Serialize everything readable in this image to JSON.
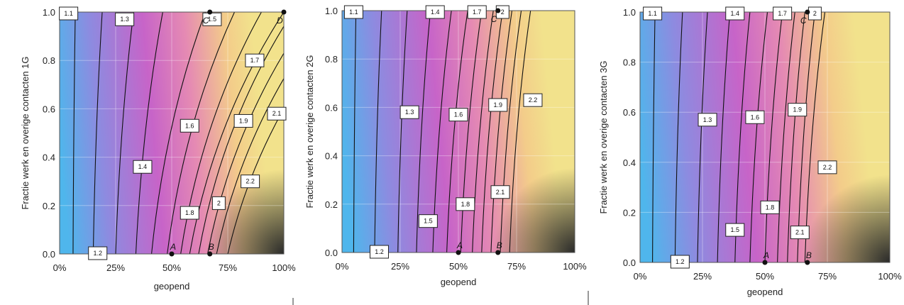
{
  "chart_data": [
    {
      "type": "heatmap",
      "title": "",
      "xlabel": "geopend",
      "ylabel": "Fractie werk en overige contacten 1G",
      "xlim": [
        0,
        100
      ],
      "ylim": [
        0,
        1
      ],
      "x_ticks": [
        "0%",
        "25%",
        "50%",
        "75%",
        "100%"
      ],
      "y_ticks": [
        "0.0",
        "0.2",
        "0.4",
        "0.6",
        "0.8",
        "1.0"
      ],
      "colormap": [
        "#4fb6ec",
        "#8d8be0",
        "#c764c8",
        "#e58ab3",
        "#f3cc8a",
        "#f2e28c",
        "#2a2a2a"
      ],
      "grid": true,
      "contour_labels": [
        {
          "text": "1.1",
          "x": 4,
          "y": 1.0
        },
        {
          "text": "1.2",
          "x": 17,
          "y": 0.0
        },
        {
          "text": "1.3",
          "x": 29,
          "y": 0.97
        },
        {
          "text": "1.4",
          "x": 37,
          "y": 0.36
        },
        {
          "text": "1.5",
          "x": 68,
          "y": 0.97
        },
        {
          "text": "1.6",
          "x": 58,
          "y": 0.53
        },
        {
          "text": "1.7",
          "x": 87,
          "y": 0.8
        },
        {
          "text": "1.8",
          "x": 58,
          "y": 0.17
        },
        {
          "text": "1.9",
          "x": 82,
          "y": 0.55
        },
        {
          "text": "2",
          "x": 71,
          "y": 0.21
        },
        {
          "text": "2.1",
          "x": 99,
          "y": 0.58
        },
        {
          "text": "2.2",
          "x": 85,
          "y": 0.3
        }
      ],
      "contour_lines": [
        {
          "level": 1.1,
          "x_at_y0": 6,
          "x_at_y1": 7
        },
        {
          "level": 1.2,
          "x_at_y0": 15,
          "x_at_y1": 19
        },
        {
          "level": 1.3,
          "x_at_y0": 25,
          "x_at_y1": 33
        },
        {
          "level": 1.4,
          "x_at_y0": 34,
          "x_at_y1": 46
        },
        {
          "level": 1.5,
          "x_at_y0": 41,
          "x_at_y1": 65
        },
        {
          "level": 1.6,
          "x_at_y0": 48,
          "x_at_y1": 78
        },
        {
          "level": 1.7,
          "x_at_y0": 54,
          "x_at_y1": 90
        },
        {
          "level": 1.8,
          "x_at_y0": 58,
          "x_at_y1": 100
        },
        {
          "level": 1.9,
          "x_at_y0": 62,
          "x_at_y1": 104
        },
        {
          "level": 2.0,
          "x_at_y0": 66,
          "x_at_y1": 112
        },
        {
          "level": 2.1,
          "x_at_y0": 70,
          "x_at_y1": 120
        },
        {
          "level": 2.2,
          "x_at_y0": 75,
          "x_at_y1": 130
        }
      ],
      "points": [
        {
          "label": "A",
          "x": 50,
          "y": 0
        },
        {
          "label": "B",
          "x": 67,
          "y": 0
        },
        {
          "label": "C",
          "x": 67,
          "y": 1
        },
        {
          "label": "D",
          "x": 100,
          "y": 1
        }
      ]
    },
    {
      "type": "heatmap",
      "title": "",
      "xlabel": "geopend",
      "ylabel": "Fractie werk en overige contacten 2G",
      "xlim": [
        0,
        100
      ],
      "ylim": [
        0,
        1
      ],
      "x_ticks": [
        "0%",
        "25%",
        "50%",
        "75%",
        "100%"
      ],
      "y_ticks": [
        "0.0",
        "0.2",
        "0.4",
        "0.6",
        "0.8",
        "1.0"
      ],
      "colormap": [
        "#4fb6ec",
        "#8d8be0",
        "#c764c8",
        "#e58ab3",
        "#f3cc8a",
        "#f2e28c",
        "#2a2a2a"
      ],
      "grid": true,
      "contour_labels": [
        {
          "text": "1.1",
          "x": 5,
          "y": 1.0
        },
        {
          "text": "1.2",
          "x": 16,
          "y": 0.0
        },
        {
          "text": "1.3",
          "x": 29,
          "y": 0.58
        },
        {
          "text": "1.4",
          "x": 40,
          "y": 1.0
        },
        {
          "text": "1.5",
          "x": 37,
          "y": 0.13
        },
        {
          "text": "1.6",
          "x": 50,
          "y": 0.57
        },
        {
          "text": "1.7",
          "x": 58,
          "y": 1.0
        },
        {
          "text": "1.8",
          "x": 53,
          "y": 0.2
        },
        {
          "text": "1.9",
          "x": 67,
          "y": 0.61
        },
        {
          "text": "2",
          "x": 69,
          "y": 1.0
        },
        {
          "text": "2.1",
          "x": 68,
          "y": 0.25
        },
        {
          "text": "2.2",
          "x": 82,
          "y": 0.63
        }
      ],
      "contour_lines": [
        {
          "level": 1.1,
          "x_at_y0": 5,
          "x_at_y1": 6
        },
        {
          "level": 1.2,
          "x_at_y0": 14,
          "x_at_y1": 17
        },
        {
          "level": 1.3,
          "x_at_y0": 24,
          "x_at_y1": 28
        },
        {
          "level": 1.4,
          "x_at_y0": 32,
          "x_at_y1": 38
        },
        {
          "level": 1.5,
          "x_at_y0": 39,
          "x_at_y1": 47
        },
        {
          "level": 1.6,
          "x_at_y0": 45,
          "x_at_y1": 54
        },
        {
          "level": 1.7,
          "x_at_y0": 51,
          "x_at_y1": 60
        },
        {
          "level": 1.8,
          "x_at_y0": 56,
          "x_at_y1": 65
        },
        {
          "level": 1.9,
          "x_at_y0": 60,
          "x_at_y1": 69
        },
        {
          "level": 2.0,
          "x_at_y0": 64,
          "x_at_y1": 73
        },
        {
          "level": 2.1,
          "x_at_y0": 68,
          "x_at_y1": 77
        },
        {
          "level": 2.2,
          "x_at_y0": 72,
          "x_at_y1": 81
        }
      ],
      "points": [
        {
          "label": "A",
          "x": 50,
          "y": 0
        },
        {
          "label": "B",
          "x": 67,
          "y": 0
        },
        {
          "label": "C",
          "x": 67,
          "y": 1
        }
      ]
    },
    {
      "type": "heatmap",
      "title": "",
      "xlabel": "geopend",
      "ylabel": "Fractie werk en overige contacten 3G",
      "xlim": [
        0,
        100
      ],
      "ylim": [
        0,
        1
      ],
      "x_ticks": [
        "0%",
        "25%",
        "50%",
        "75%",
        "100%"
      ],
      "y_ticks": [
        "0.0",
        "0.2",
        "0.4",
        "0.6",
        "0.8",
        "1.0"
      ],
      "colormap": [
        "#4fb6ec",
        "#8d8be0",
        "#c764c8",
        "#e58ab3",
        "#f3cc8a",
        "#f2e28c",
        "#2a2a2a"
      ],
      "grid": true,
      "contour_labels": [
        {
          "text": "1.1",
          "x": 5,
          "y": 1.0
        },
        {
          "text": "1.2",
          "x": 16,
          "y": 0.0
        },
        {
          "text": "1.3",
          "x": 27,
          "y": 0.57
        },
        {
          "text": "1.4",
          "x": 38,
          "y": 1.0
        },
        {
          "text": "1.5",
          "x": 38,
          "y": 0.13
        },
        {
          "text": "1.6",
          "x": 46,
          "y": 0.58
        },
        {
          "text": "1.7",
          "x": 57,
          "y": 1.0
        },
        {
          "text": "1.8",
          "x": 52,
          "y": 0.22
        },
        {
          "text": "1.9",
          "x": 63,
          "y": 0.61
        },
        {
          "text": "2",
          "x": 70,
          "y": 1.0
        },
        {
          "text": "2.1",
          "x": 64,
          "y": 0.12
        },
        {
          "text": "2.2",
          "x": 75,
          "y": 0.38
        }
      ],
      "contour_lines": [
        {
          "level": 1.1,
          "x_at_y0": 5,
          "x_at_y1": 6
        },
        {
          "level": 1.2,
          "x_at_y0": 14,
          "x_at_y1": 17
        },
        {
          "level": 1.3,
          "x_at_y0": 23,
          "x_at_y1": 27
        },
        {
          "level": 1.4,
          "x_at_y0": 31,
          "x_at_y1": 36
        },
        {
          "level": 1.5,
          "x_at_y0": 38,
          "x_at_y1": 44
        },
        {
          "level": 1.6,
          "x_at_y0": 44,
          "x_at_y1": 51
        },
        {
          "level": 1.7,
          "x_at_y0": 50,
          "x_at_y1": 57
        },
        {
          "level": 1.8,
          "x_at_y0": 55,
          "x_at_y1": 62
        },
        {
          "level": 1.9,
          "x_at_y0": 59,
          "x_at_y1": 66
        },
        {
          "level": 2.0,
          "x_at_y0": 63,
          "x_at_y1": 70
        },
        {
          "level": 2.1,
          "x_at_y0": 66,
          "x_at_y1": 74
        }
      ],
      "points": [
        {
          "label": "A",
          "x": 50,
          "y": 0
        },
        {
          "label": "B",
          "x": 67,
          "y": 0
        },
        {
          "label": "C",
          "x": 67,
          "y": 1
        }
      ]
    }
  ]
}
